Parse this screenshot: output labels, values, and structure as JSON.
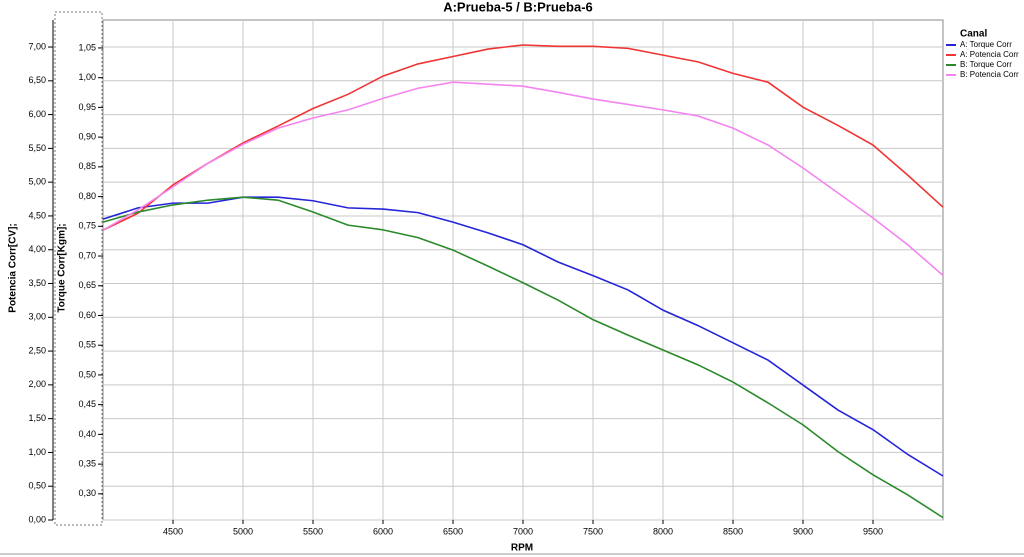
{
  "chart_data": {
    "type": "line",
    "title": "A:Prueba-5 / B:Prueba-6",
    "xlabel": "RPM",
    "ylabel": "Potencia Corr[CV];",
    "y2label": "Torque Corr[Kgm];",
    "legend_title": "Canal",
    "legend": "right",
    "grid": true,
    "x": [
      4000,
      4250,
      4500,
      4750,
      5000,
      5250,
      5500,
      5750,
      6000,
      6250,
      6500,
      6750,
      7000,
      7250,
      7500,
      7750,
      8000,
      8250,
      8500,
      8750,
      9000,
      9250,
      9500,
      9750,
      10000
    ],
    "xlim": [
      4000,
      10000
    ],
    "xticks": [
      4500,
      5000,
      5500,
      6000,
      6500,
      7000,
      7500,
      8000,
      8500,
      9000,
      9500
    ],
    "ylim": [
      0,
      7.4
    ],
    "yticks": [
      {
        "value": 0,
        "label": "0,00"
      },
      {
        "value": 0.5,
        "label": "0,50"
      },
      {
        "value": 1,
        "label": "1,00"
      },
      {
        "value": 1.5,
        "label": "1,50"
      },
      {
        "value": 2,
        "label": "2,00"
      },
      {
        "value": 2.5,
        "label": "2,50"
      },
      {
        "value": 3,
        "label": "3,00"
      },
      {
        "value": 3.5,
        "label": "3,50"
      },
      {
        "value": 4,
        "label": "4,00"
      },
      {
        "value": 4.5,
        "label": "4,50"
      },
      {
        "value": 5,
        "label": "5,00"
      },
      {
        "value": 5.5,
        "label": "5,50"
      },
      {
        "value": 6,
        "label": "6,00"
      },
      {
        "value": 6.5,
        "label": "6,50"
      },
      {
        "value": 7,
        "label": "7,00"
      }
    ],
    "y2lim": [
      0.256,
      1.097
    ],
    "y2ticks": [
      {
        "value": 0.3,
        "label": "0,30"
      },
      {
        "value": 0.35,
        "label": "0,35"
      },
      {
        "value": 0.4,
        "label": "0,40"
      },
      {
        "value": 0.45,
        "label": "0,45"
      },
      {
        "value": 0.5,
        "label": "0,50"
      },
      {
        "value": 0.55,
        "label": "0,55"
      },
      {
        "value": 0.6,
        "label": "0,60"
      },
      {
        "value": 0.65,
        "label": "0,65"
      },
      {
        "value": 0.7,
        "label": "0,70"
      },
      {
        "value": 0.75,
        "label": "0,75"
      },
      {
        "value": 0.8,
        "label": "0,80"
      },
      {
        "value": 0.85,
        "label": "0,85"
      },
      {
        "value": 0.9,
        "label": "0,90"
      },
      {
        "value": 0.95,
        "label": "0,95"
      },
      {
        "value": 1,
        "label": "1,00"
      },
      {
        "value": 1.05,
        "label": "1,05"
      }
    ],
    "series": [
      {
        "name": "A: Torque Corr",
        "color": "#2424d8",
        "axis": "y2",
        "values": [
          0.762,
          0.781,
          0.789,
          0.789,
          0.799,
          0.799,
          0.793,
          0.781,
          0.779,
          0.773,
          0.757,
          0.739,
          0.719,
          0.69,
          0.667,
          0.643,
          0.609,
          0.583,
          0.554,
          0.525,
          0.483,
          0.441,
          0.408,
          0.366,
          0.33
        ]
      },
      {
        "name": "A: Potencia Corr",
        "color": "#f03434",
        "values": [
          4.29,
          4.54,
          4.96,
          5.28,
          5.58,
          5.83,
          6.09,
          6.3,
          6.57,
          6.75,
          6.86,
          6.97,
          7.03,
          7.01,
          7.01,
          6.98,
          6.88,
          6.78,
          6.61,
          6.48,
          6.11,
          5.84,
          5.55,
          5.1,
          4.63
        ]
      },
      {
        "name": "B: Torque Corr",
        "color": "#2a8a2a",
        "axis": "y2",
        "values": [
          0.757,
          0.774,
          0.786,
          0.794,
          0.799,
          0.794,
          0.774,
          0.752,
          0.744,
          0.731,
          0.71,
          0.683,
          0.655,
          0.626,
          0.593,
          0.567,
          0.542,
          0.517,
          0.488,
          0.453,
          0.416,
          0.371,
          0.332,
          0.298,
          0.26
        ]
      },
      {
        "name": "B: Potencia Corr",
        "color": "#f484f0",
        "values": [
          4.29,
          4.59,
          4.93,
          5.28,
          5.56,
          5.8,
          5.95,
          6.07,
          6.24,
          6.39,
          6.48,
          6.45,
          6.42,
          6.33,
          6.23,
          6.15,
          6.07,
          5.98,
          5.8,
          5.55,
          5.21,
          4.84,
          4.47,
          4.07,
          3.62
        ]
      }
    ]
  }
}
